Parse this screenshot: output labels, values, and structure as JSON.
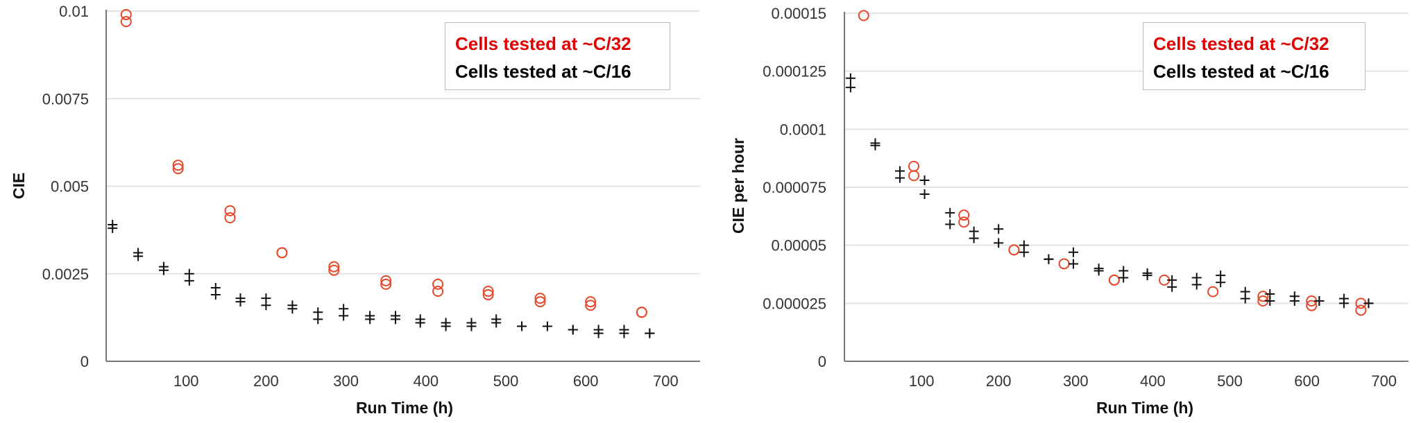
{
  "colors": {
    "c32": "#e8472a",
    "c16": "#111111",
    "legend_c32": "#e00000",
    "grid": "#e3e3e3",
    "axis": "#777777"
  },
  "chart_data": [
    {
      "type": "scatter",
      "title": "",
      "xlabel": "Run Time (h)",
      "ylabel": "CIE",
      "xlim": [
        0,
        750
      ],
      "ylim": [
        0,
        0.01
      ],
      "xticks": [
        100,
        200,
        300,
        400,
        500,
        600,
        700
      ],
      "xtick_labels": [
        "100",
        "200",
        "300",
        "400",
        "500",
        "600",
        "700"
      ],
      "yticks": [
        0,
        0.0025,
        0.005,
        0.0075,
        0.01
      ],
      "ytick_labels": [
        "0",
        "0.0025",
        "0.005",
        "0.0075",
        "0.01"
      ],
      "grid": true,
      "legend_position": "top-right",
      "series": [
        {
          "name": "Cells tested at ~C/32",
          "marker": "circle",
          "points": [
            [
              25,
              0.0099
            ],
            [
              25,
              0.0097
            ],
            [
              90,
              0.0056
            ],
            [
              90,
              0.0055
            ],
            [
              155,
              0.0043
            ],
            [
              155,
              0.0041
            ],
            [
              220,
              0.0031
            ],
            [
              220,
              0.0031
            ],
            [
              285,
              0.0027
            ],
            [
              285,
              0.0026
            ],
            [
              350,
              0.0023
            ],
            [
              350,
              0.0022
            ],
            [
              415,
              0.0022
            ],
            [
              415,
              0.002
            ],
            [
              478,
              0.002
            ],
            [
              478,
              0.0019
            ],
            [
              543,
              0.0018
            ],
            [
              543,
              0.0017
            ],
            [
              606,
              0.0017
            ],
            [
              606,
              0.0016
            ],
            [
              670,
              0.0014
            ],
            [
              670,
              0.0014
            ]
          ]
        },
        {
          "name": "Cells tested at ~C/16",
          "marker": "plus",
          "points": [
            [
              8,
              0.0039
            ],
            [
              8,
              0.0038
            ],
            [
              40,
              0.0031
            ],
            [
              40,
              0.003
            ],
            [
              72,
              0.0027
            ],
            [
              72,
              0.0026
            ],
            [
              104,
              0.0025
            ],
            [
              104,
              0.0023
            ],
            [
              137,
              0.0021
            ],
            [
              137,
              0.0019
            ],
            [
              168,
              0.0018
            ],
            [
              168,
              0.0017
            ],
            [
              200,
              0.0018
            ],
            [
              200,
              0.0016
            ],
            [
              233,
              0.0016
            ],
            [
              233,
              0.0015
            ],
            [
              265,
              0.0014
            ],
            [
              265,
              0.0012
            ],
            [
              297,
              0.0015
            ],
            [
              297,
              0.0013
            ],
            [
              330,
              0.0013
            ],
            [
              330,
              0.0012
            ],
            [
              362,
              0.0013
            ],
            [
              362,
              0.0012
            ],
            [
              393,
              0.0012
            ],
            [
              393,
              0.0011
            ],
            [
              425,
              0.0011
            ],
            [
              425,
              0.001
            ],
            [
              457,
              0.0011
            ],
            [
              457,
              0.001
            ],
            [
              488,
              0.0012
            ],
            [
              488,
              0.0011
            ],
            [
              520,
              0.001
            ],
            [
              520,
              0.001
            ],
            [
              552,
              0.001
            ],
            [
              584,
              0.0009
            ],
            [
              584,
              0.0009
            ],
            [
              616,
              0.0009
            ],
            [
              616,
              0.0008
            ],
            [
              648,
              0.0009
            ],
            [
              648,
              0.0008
            ],
            [
              680,
              0.0008
            ],
            [
              680,
              0.0008
            ]
          ]
        }
      ]
    },
    {
      "type": "scatter",
      "title": "",
      "xlabel": "Run Time (h)",
      "ylabel": "CIE per hour",
      "xlim": [
        0,
        730
      ],
      "ylim": [
        0,
        0.00015
      ],
      "xticks": [
        100,
        200,
        300,
        400,
        500,
        600,
        700
      ],
      "xtick_labels": [
        "100",
        "200",
        "300",
        "400",
        "500",
        "600",
        "700"
      ],
      "yticks": [
        0,
        2.5e-05,
        5e-05,
        7.5e-05,
        0.0001,
        0.000125,
        0.00015
      ],
      "ytick_labels": [
        "0",
        "0.000025",
        "0.00005",
        "0.000075",
        "0.0001",
        "0.000125",
        "0.00015"
      ],
      "grid": true,
      "legend_position": "top-right",
      "series": [
        {
          "name": "Cells tested at ~C/32",
          "marker": "circle",
          "points": [
            [
              25,
              0.000149
            ],
            [
              90,
              8.4e-05
            ],
            [
              90,
              8e-05
            ],
            [
              155,
              6.3e-05
            ],
            [
              155,
              6e-05
            ],
            [
              220,
              4.8e-05
            ],
            [
              220,
              4.8e-05
            ],
            [
              285,
              4.2e-05
            ],
            [
              350,
              3.5e-05
            ],
            [
              350,
              3.5e-05
            ],
            [
              415,
              3.5e-05
            ],
            [
              478,
              3e-05
            ],
            [
              543,
              2.8e-05
            ],
            [
              543,
              2.6e-05
            ],
            [
              606,
              2.6e-05
            ],
            [
              606,
              2.4e-05
            ],
            [
              670,
              2.5e-05
            ],
            [
              670,
              2.2e-05
            ]
          ]
        },
        {
          "name": "Cells tested at ~C/16",
          "marker": "plus",
          "points": [
            [
              8,
              0.000122
            ],
            [
              8,
              0.000118
            ],
            [
              40,
              9.4e-05
            ],
            [
              40,
              9.3e-05
            ],
            [
              72,
              8.2e-05
            ],
            [
              72,
              7.9e-05
            ],
            [
              104,
              7.8e-05
            ],
            [
              104,
              7.2e-05
            ],
            [
              137,
              6.4e-05
            ],
            [
              137,
              5.9e-05
            ],
            [
              168,
              5.6e-05
            ],
            [
              168,
              5.3e-05
            ],
            [
              200,
              5.7e-05
            ],
            [
              200,
              5.1e-05
            ],
            [
              233,
              5e-05
            ],
            [
              233,
              4.7e-05
            ],
            [
              265,
              4.4e-05
            ],
            [
              265,
              4.4e-05
            ],
            [
              297,
              4.7e-05
            ],
            [
              297,
              4.2e-05
            ],
            [
              330,
              4e-05
            ],
            [
              330,
              3.9e-05
            ],
            [
              362,
              3.9e-05
            ],
            [
              362,
              3.6e-05
            ],
            [
              393,
              3.8e-05
            ],
            [
              393,
              3.7e-05
            ],
            [
              425,
              3.5e-05
            ],
            [
              425,
              3.2e-05
            ],
            [
              457,
              3.6e-05
            ],
            [
              457,
              3.3e-05
            ],
            [
              488,
              3.7e-05
            ],
            [
              488,
              3.4e-05
            ],
            [
              520,
              3e-05
            ],
            [
              520,
              2.7e-05
            ],
            [
              552,
              2.9e-05
            ],
            [
              552,
              2.6e-05
            ],
            [
              584,
              2.8e-05
            ],
            [
              584,
              2.6e-05
            ],
            [
              616,
              2.6e-05
            ],
            [
              616,
              2.6e-05
            ],
            [
              648,
              2.7e-05
            ],
            [
              648,
              2.5e-05
            ],
            [
              680,
              2.5e-05
            ],
            [
              680,
              2.5e-05
            ]
          ]
        }
      ]
    }
  ]
}
